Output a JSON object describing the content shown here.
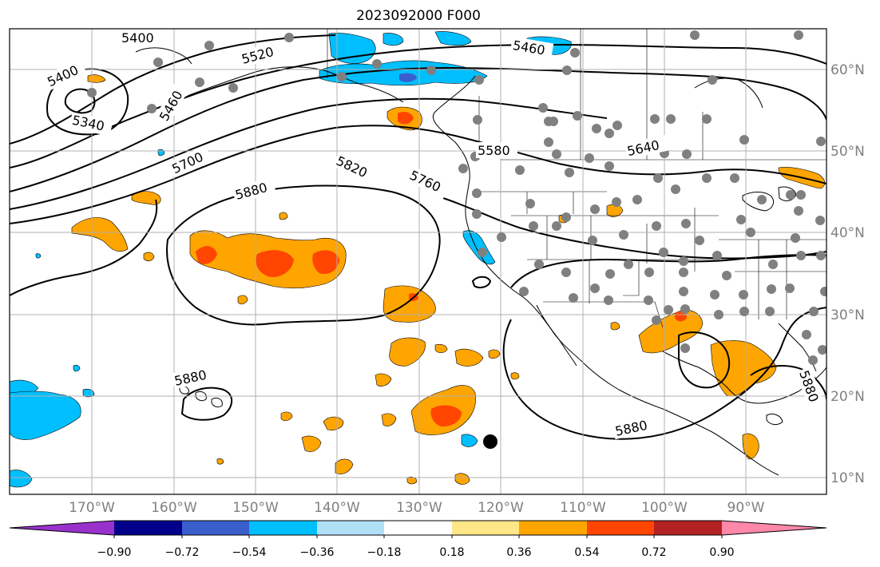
{
  "title": "2023092000 F000",
  "map": {
    "lon_ticks": [
      "170°W",
      "160°W",
      "150°W",
      "140°W",
      "130°W",
      "120°W",
      "110°W",
      "100°W",
      "90°W"
    ],
    "lat_ticks": [
      "60°N",
      "50°N",
      "40°N",
      "30°N",
      "20°N",
      "10°N"
    ],
    "contour_labels": [
      "5400",
      "5400",
      "5340",
      "5460",
      "5520",
      "5460",
      "5580",
      "5640",
      "5700",
      "5820",
      "5760",
      "5880",
      "5880",
      "5880",
      "5880"
    ],
    "gridlines": true
  },
  "colorbar": {
    "tick_labels": [
      "−0.90",
      "−0.72",
      "−0.54",
      "−0.36",
      "−0.18",
      "0.18",
      "0.36",
      "0.54",
      "0.72",
      "0.90"
    ],
    "colors": [
      "#9932cc",
      "#00008b",
      "#3a5fcd",
      "#00bfff",
      "#b0e0f6",
      "#ffffff",
      "#ffe687",
      "#ffa500",
      "#ff4500",
      "#b22222",
      "#ff88aa"
    ],
    "extend": "both"
  }
}
